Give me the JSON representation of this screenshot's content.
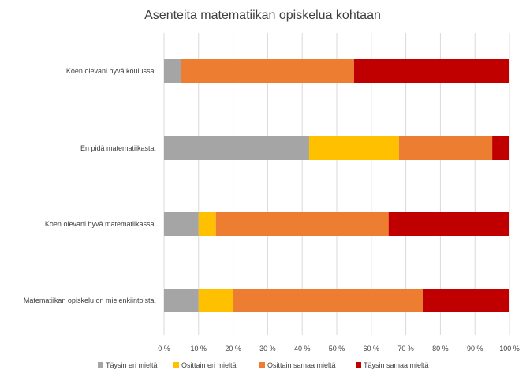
{
  "chart_data": {
    "type": "bar",
    "orientation": "horizontal",
    "stacked": true,
    "title": "Asenteita matematiikan opiskelua kohtaan",
    "categories": [
      "Koen olevani hyvä koulussa.",
      "En pidä matematiikasta.",
      "Koen olevani hyvä matematiikassa.",
      "Matematiikan opiskelu on mielenkiintoista."
    ],
    "series": [
      {
        "name": "Täysin eri mieltä",
        "color": "#a5a5a5",
        "values": [
          5,
          42,
          10,
          10
        ]
      },
      {
        "name": "Osittain eri mieltä",
        "color": "#ffc000",
        "values": [
          0,
          26,
          5,
          10
        ]
      },
      {
        "name": "Osittain samaa mieltä",
        "color": "#ed7d31",
        "values": [
          50,
          27,
          50,
          55
        ]
      },
      {
        "name": "Täysin samaa mieltä",
        "color": "#c00000",
        "values": [
          45,
          5,
          35,
          25
        ]
      }
    ],
    "xlim": [
      0,
      100
    ],
    "xticks": [
      "0 %",
      "10 %",
      "20 %",
      "30 %",
      "40 %",
      "50 %",
      "60 %",
      "70 %",
      "80 %",
      "90 %",
      "100 %"
    ],
    "grid": true,
    "legend_position": "bottom"
  }
}
